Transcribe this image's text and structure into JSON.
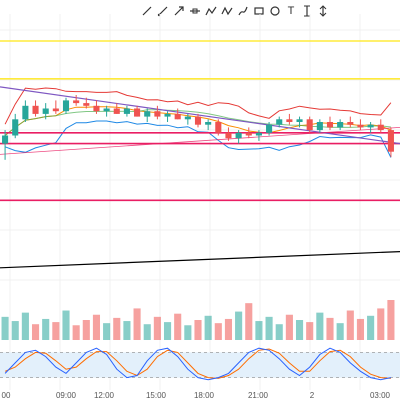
{
  "toolbar": {
    "tools": [
      {
        "name": "trend-line-tool",
        "icon": "pencil-line-icon"
      },
      {
        "name": "ray-tool",
        "icon": "line-icon"
      },
      {
        "name": "arrow-tool",
        "icon": "arrow-icon"
      },
      {
        "name": "horizontal-line-tool",
        "icon": "horizontal-line-icon"
      },
      {
        "name": "path-tool",
        "icon": "path-icon"
      },
      {
        "name": "zigzag-tool",
        "icon": "zigzag-icon"
      },
      {
        "name": "brush-tool",
        "icon": "brush-icon"
      },
      {
        "name": "rectangle-tool",
        "icon": "rectangle-icon"
      },
      {
        "name": "ellipse-tool",
        "icon": "circle-icon"
      },
      {
        "name": "text-tool",
        "icon": "text-icon",
        "glyph": "T"
      },
      {
        "name": "price-range-tool",
        "icon": "price-range-icon"
      },
      {
        "name": "measure-tool",
        "icon": "measure-icon"
      }
    ]
  },
  "chart_data": {
    "type": "candlestick",
    "x_tick_labels": [
      "00",
      "09:00",
      "12:00",
      "15:00",
      "18:00",
      "21:00",
      "2",
      "03:00"
    ],
    "grid": true,
    "colors": {
      "up": "#26a69a",
      "down": "#ef5350",
      "horizontal_levels": "#ffeb3b",
      "support_resistance": "#e91e63",
      "trend_up_line": "#000000",
      "trend_channel": "#7e57c2",
      "bollinger_outer": "#e53935",
      "bollinger_mid": "#fb8c00",
      "bollinger_lower": "#1e88e5",
      "moving_average": "#4caf50",
      "stochastic_k": "#2962ff",
      "stochastic_d": "#ff6d00",
      "stochastic_band": "#e3f0fb"
    },
    "price_range": [
      0,
      100
    ],
    "horizontal_levels": [
      {
        "kind": "resistance",
        "value": 90,
        "color": "#ffeb3b"
      },
      {
        "kind": "resistance",
        "value": 76,
        "color": "#ffeb3b"
      },
      {
        "kind": "level",
        "value": 56,
        "color": "#e91e63"
      },
      {
        "kind": "level",
        "value": 52,
        "color": "#e91e63"
      },
      {
        "kind": "support",
        "value": 31,
        "color": "#e91e63"
      }
    ],
    "candles": [
      {
        "o": 52,
        "h": 57,
        "l": 46,
        "c": 55
      },
      {
        "o": 55,
        "h": 63,
        "l": 54,
        "c": 61
      },
      {
        "o": 61,
        "h": 68,
        "l": 60,
        "c": 66
      },
      {
        "o": 66,
        "h": 68,
        "l": 62,
        "c": 63
      },
      {
        "o": 63,
        "h": 67,
        "l": 61,
        "c": 65
      },
      {
        "o": 65,
        "h": 68,
        "l": 63,
        "c": 64
      },
      {
        "o": 64,
        "h": 69,
        "l": 63,
        "c": 68
      },
      {
        "o": 68,
        "h": 70,
        "l": 66,
        "c": 67
      },
      {
        "o": 67,
        "h": 69,
        "l": 65,
        "c": 66
      },
      {
        "o": 66,
        "h": 68,
        "l": 63,
        "c": 64
      },
      {
        "o": 64,
        "h": 66,
        "l": 62,
        "c": 65
      },
      {
        "o": 65,
        "h": 67,
        "l": 63,
        "c": 63
      },
      {
        "o": 63,
        "h": 66,
        "l": 62,
        "c": 65
      },
      {
        "o": 65,
        "h": 66,
        "l": 62,
        "c": 62
      },
      {
        "o": 62,
        "h": 65,
        "l": 60,
        "c": 64
      },
      {
        "o": 64,
        "h": 66,
        "l": 61,
        "c": 62
      },
      {
        "o": 62,
        "h": 64,
        "l": 60,
        "c": 63
      },
      {
        "o": 63,
        "h": 65,
        "l": 61,
        "c": 61
      },
      {
        "o": 61,
        "h": 63,
        "l": 59,
        "c": 62
      },
      {
        "o": 62,
        "h": 63,
        "l": 58,
        "c": 59
      },
      {
        "o": 59,
        "h": 61,
        "l": 57,
        "c": 60
      },
      {
        "o": 60,
        "h": 61,
        "l": 55,
        "c": 56
      },
      {
        "o": 56,
        "h": 58,
        "l": 53,
        "c": 54
      },
      {
        "o": 54,
        "h": 57,
        "l": 52,
        "c": 56
      },
      {
        "o": 56,
        "h": 58,
        "l": 54,
        "c": 55
      },
      {
        "o": 55,
        "h": 57,
        "l": 53,
        "c": 56
      },
      {
        "o": 56,
        "h": 60,
        "l": 55,
        "c": 59
      },
      {
        "o": 59,
        "h": 62,
        "l": 58,
        "c": 61
      },
      {
        "o": 61,
        "h": 63,
        "l": 59,
        "c": 60
      },
      {
        "o": 60,
        "h": 62,
        "l": 58,
        "c": 61
      },
      {
        "o": 61,
        "h": 62,
        "l": 56,
        "c": 57
      },
      {
        "o": 57,
        "h": 61,
        "l": 56,
        "c": 60
      },
      {
        "o": 60,
        "h": 62,
        "l": 57,
        "c": 58
      },
      {
        "o": 58,
        "h": 61,
        "l": 57,
        "c": 60
      },
      {
        "o": 60,
        "h": 62,
        "l": 58,
        "c": 59
      },
      {
        "o": 59,
        "h": 61,
        "l": 57,
        "c": 58
      },
      {
        "o": 58,
        "h": 60,
        "l": 56,
        "c": 59
      },
      {
        "o": 59,
        "h": 61,
        "l": 56,
        "c": 57
      },
      {
        "o": 57,
        "h": 58,
        "l": 47,
        "c": 49
      }
    ],
    "volume": [
      22,
      18,
      26,
      15,
      20,
      17,
      28,
      14,
      19,
      24,
      16,
      21,
      18,
      30,
      15,
      22,
      17,
      25,
      14,
      19,
      23,
      16,
      20,
      27,
      35,
      18,
      22,
      15,
      24,
      19,
      17,
      26,
      21,
      16,
      28,
      20,
      23,
      30,
      38
    ],
    "stochastic": {
      "k": [
        30,
        55,
        80,
        85,
        70,
        45,
        30,
        55,
        80,
        90,
        75,
        40,
        20,
        25,
        60,
        85,
        90,
        70,
        40,
        20,
        15,
        20,
        30,
        55,
        80,
        90,
        85,
        65,
        40,
        25,
        45,
        75,
        90,
        80,
        55,
        35,
        20,
        15,
        20
      ],
      "d": [
        35,
        45,
        65,
        80,
        78,
        60,
        40,
        45,
        65,
        82,
        82,
        60,
        35,
        25,
        40,
        70,
        85,
        80,
        55,
        30,
        20,
        18,
        25,
        40,
        65,
        85,
        88,
        78,
        55,
        35,
        35,
        60,
        82,
        85,
        70,
        45,
        28,
        20,
        18
      ],
      "upper_band": 80,
      "lower_band": 20
    }
  }
}
